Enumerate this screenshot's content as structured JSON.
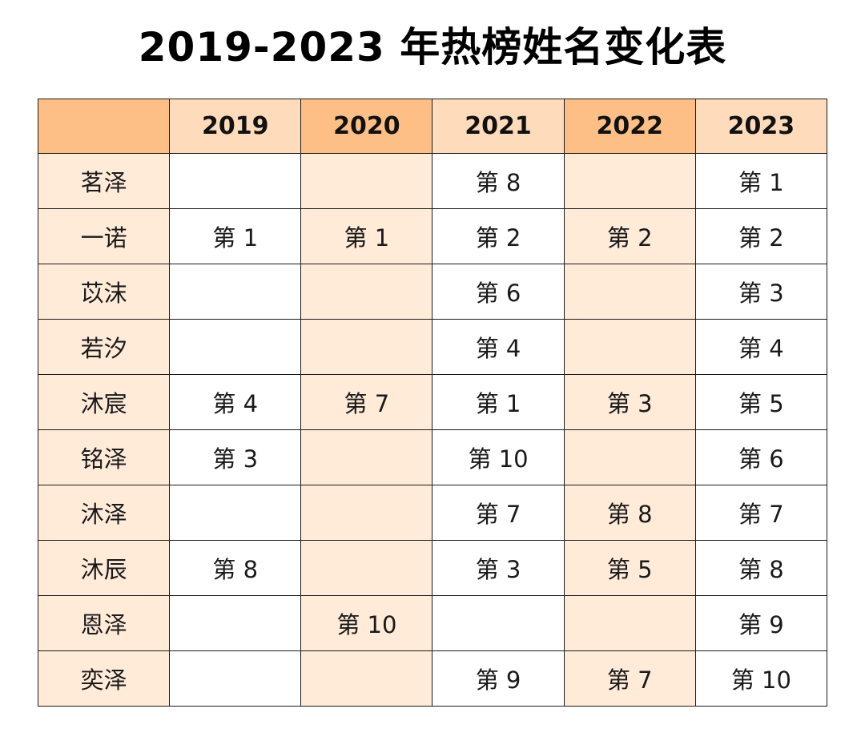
{
  "title": "2019-2023 年热榜姓名变化表",
  "colors": {
    "header_dark": "#fdbf86",
    "header_light": "#fedcbb",
    "tint": "#ffebd8",
    "border": "#1a1a1a"
  },
  "table": {
    "corner_label": "",
    "years": [
      "2019",
      "2020",
      "2021",
      "2022",
      "2023"
    ],
    "rows": [
      {
        "name": "茗泽",
        "ranks": [
          "",
          "",
          "第 8",
          "",
          "第 1"
        ]
      },
      {
        "name": "一诺",
        "ranks": [
          "第 1",
          "第 1",
          "第 2",
          "第 2",
          "第 2"
        ]
      },
      {
        "name": "苡沫",
        "ranks": [
          "",
          "",
          "第 6",
          "",
          "第 3"
        ]
      },
      {
        "name": "若汐",
        "ranks": [
          "",
          "",
          "第 4",
          "",
          "第 4"
        ]
      },
      {
        "name": "沐宸",
        "ranks": [
          "第 4",
          "第 7",
          "第 1",
          "第 3",
          "第 5"
        ]
      },
      {
        "name": "铭泽",
        "ranks": [
          "第 3",
          "",
          "第 10",
          "",
          "第 6"
        ]
      },
      {
        "name": "沐泽",
        "ranks": [
          "",
          "",
          "第 7",
          "第 8",
          "第 7"
        ]
      },
      {
        "name": "沐辰",
        "ranks": [
          "第 8",
          "",
          "第 3",
          "第 5",
          "第 8"
        ]
      },
      {
        "name": "恩泽",
        "ranks": [
          "",
          "第 10",
          "",
          "",
          "第 9"
        ]
      },
      {
        "name": "奕泽",
        "ranks": [
          "",
          "",
          "第 9",
          "第 7",
          "第 10"
        ]
      }
    ]
  }
}
